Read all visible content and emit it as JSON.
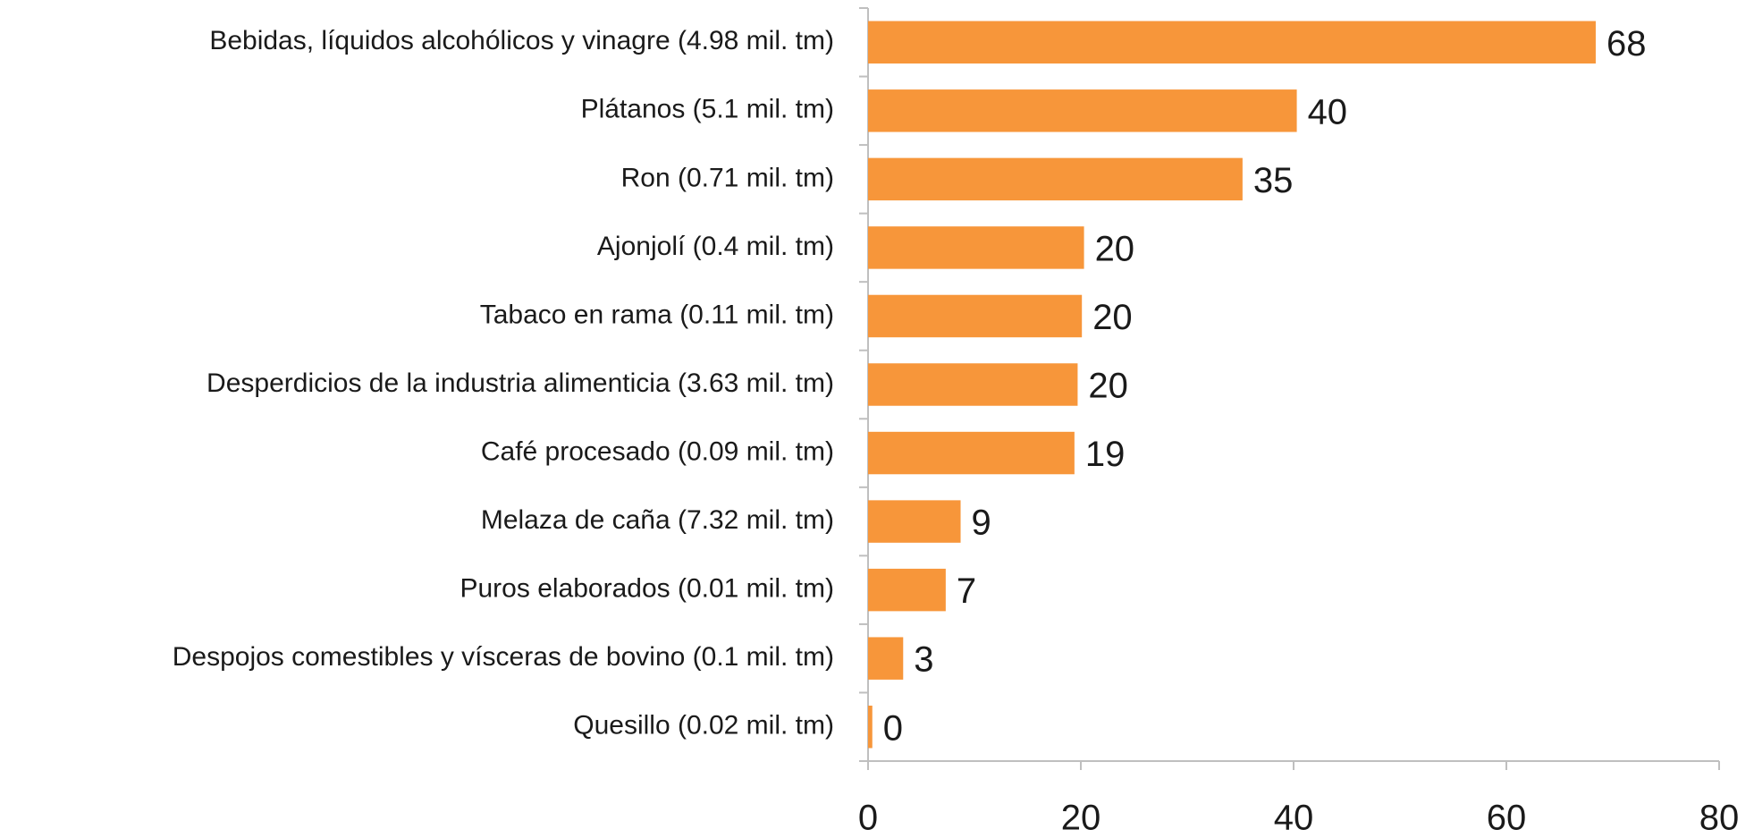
{
  "chart_data": {
    "type": "bar",
    "orientation": "horizontal",
    "categories": [
      "Bebidas, líquidos alcohólicos y vinagre (4.98 mil. tm)",
      "Plátanos (5.1 mil. tm)",
      "Ron (0.71 mil. tm)",
      "Ajonjolí (0.4 mil. tm)",
      "Tabaco en rama (0.11 mil. tm)",
      "Desperdicios de la industria alimenticia (3.63 mil. tm)",
      "Café procesado (0.09 mil. tm)",
      "Melaza de caña (7.32 mil. tm)",
      "Puros elaborados (0.01 mil. tm)",
      "Despojos comestibles y vísceras de bovino (0.1 mil. tm)",
      "Quesillo (0.02 mil. tm)"
    ],
    "values": [
      68.4,
      40.3,
      35.2,
      20.3,
      20.1,
      19.7,
      19.4,
      8.7,
      7.3,
      3.3,
      0.4
    ],
    "value_labels": [
      "68",
      "40",
      "35",
      "20",
      "20",
      "20",
      "19",
      "9",
      "7",
      "3",
      "0"
    ],
    "color": "#f7963a",
    "xlim": [
      0,
      80
    ],
    "xticks": [
      0,
      20,
      40,
      60,
      80
    ],
    "grid": false
  }
}
